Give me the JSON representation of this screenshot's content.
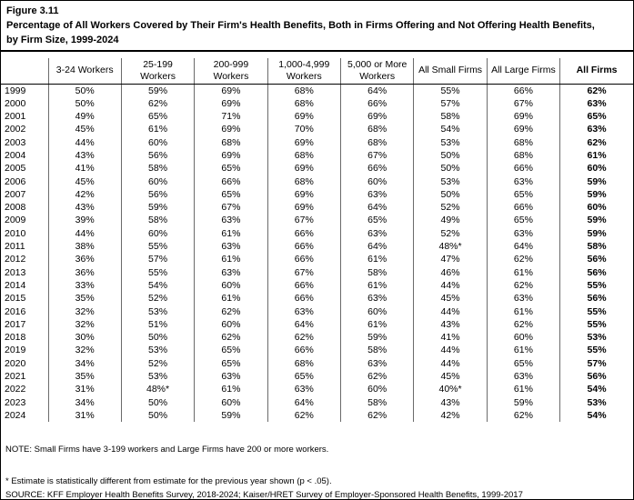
{
  "figure": {
    "label": "Figure 3.11",
    "title_line1": "Percentage of All Workers Covered by Their Firm's Health Benefits, Both in Firms Offering and Not Offering Health Benefits,",
    "title_line2": "by Firm Size, 1999-2024"
  },
  "notes": {
    "note": "NOTE: Small Firms have 3-199 workers and Large Firms have 200 or more workers.",
    "footnote": "* Estimate is statistically different from estimate for the previous year shown (p < .05).",
    "source": "SOURCE: KFF Employer Health Benefits Survey, 2018-2024; Kaiser/HRET Survey of Employer-Sponsored Health Benefits, 1999-2017"
  },
  "chart_data": {
    "type": "table",
    "title": "Percentage of All Workers Covered by Their Firm's Health Benefits, Both in Firms Offering and Not Offering Health Benefits, by Firm Size, 1999-2024",
    "columns": [
      "",
      "3-24 Workers",
      "25-199 Workers",
      "200-999 Workers",
      "1,000-4,999 Workers",
      "5,000 or More Workers",
      "All Small Firms",
      "All Large Firms",
      "All Firms"
    ],
    "rows": [
      [
        "1999",
        "50%",
        "59%",
        "69%",
        "68%",
        "64%",
        "55%",
        "66%",
        "62%"
      ],
      [
        "2000",
        "50%",
        "62%",
        "69%",
        "68%",
        "66%",
        "57%",
        "67%",
        "63%"
      ],
      [
        "2001",
        "49%",
        "65%",
        "71%",
        "69%",
        "69%",
        "58%",
        "69%",
        "65%"
      ],
      [
        "2002",
        "45%",
        "61%",
        "69%",
        "70%",
        "68%",
        "54%",
        "69%",
        "63%"
      ],
      [
        "2003",
        "44%",
        "60%",
        "68%",
        "69%",
        "68%",
        "53%",
        "68%",
        "62%"
      ],
      [
        "2004",
        "43%",
        "56%",
        "69%",
        "68%",
        "67%",
        "50%",
        "68%",
        "61%"
      ],
      [
        "2005",
        "41%",
        "58%",
        "65%",
        "69%",
        "66%",
        "50%",
        "66%",
        "60%"
      ],
      [
        "2006",
        "45%",
        "60%",
        "66%",
        "68%",
        "60%",
        "53%",
        "63%",
        "59%"
      ],
      [
        "2007",
        "42%",
        "56%",
        "65%",
        "69%",
        "63%",
        "50%",
        "65%",
        "59%"
      ],
      [
        "2008",
        "43%",
        "59%",
        "67%",
        "69%",
        "64%",
        "52%",
        "66%",
        "60%"
      ],
      [
        "2009",
        "39%",
        "58%",
        "63%",
        "67%",
        "65%",
        "49%",
        "65%",
        "59%"
      ],
      [
        "2010",
        "44%",
        "60%",
        "61%",
        "66%",
        "63%",
        "52%",
        "63%",
        "59%"
      ],
      [
        "2011",
        "38%",
        "55%",
        "63%",
        "66%",
        "64%",
        "48%*",
        "64%",
        "58%"
      ],
      [
        "2012",
        "36%",
        "57%",
        "61%",
        "66%",
        "61%",
        "47%",
        "62%",
        "56%"
      ],
      [
        "2013",
        "36%",
        "55%",
        "63%",
        "67%",
        "58%",
        "46%",
        "61%",
        "56%"
      ],
      [
        "2014",
        "33%",
        "54%",
        "60%",
        "66%",
        "61%",
        "44%",
        "62%",
        "55%"
      ],
      [
        "2015",
        "35%",
        "52%",
        "61%",
        "66%",
        "63%",
        "45%",
        "63%",
        "56%"
      ],
      [
        "2016",
        "32%",
        "53%",
        "62%",
        "63%",
        "60%",
        "44%",
        "61%",
        "55%"
      ],
      [
        "2017",
        "32%",
        "51%",
        "60%",
        "64%",
        "61%",
        "43%",
        "62%",
        "55%"
      ],
      [
        "2018",
        "30%",
        "50%",
        "62%",
        "62%",
        "59%",
        "41%",
        "60%",
        "53%"
      ],
      [
        "2019",
        "32%",
        "53%",
        "65%",
        "66%",
        "58%",
        "44%",
        "61%",
        "55%"
      ],
      [
        "2020",
        "34%",
        "52%",
        "65%",
        "68%",
        "63%",
        "44%",
        "65%",
        "57%"
      ],
      [
        "2021",
        "35%",
        "53%",
        "63%",
        "65%",
        "62%",
        "45%",
        "63%",
        "56%"
      ],
      [
        "2022",
        "31%",
        "48%*",
        "61%",
        "63%",
        "60%",
        "40%*",
        "61%",
        "54%"
      ],
      [
        "2023",
        "34%",
        "50%",
        "60%",
        "64%",
        "58%",
        "43%",
        "59%",
        "53%"
      ],
      [
        "2024",
        "31%",
        "50%",
        "59%",
        "62%",
        "62%",
        "42%",
        "62%",
        "54%"
      ]
    ]
  }
}
